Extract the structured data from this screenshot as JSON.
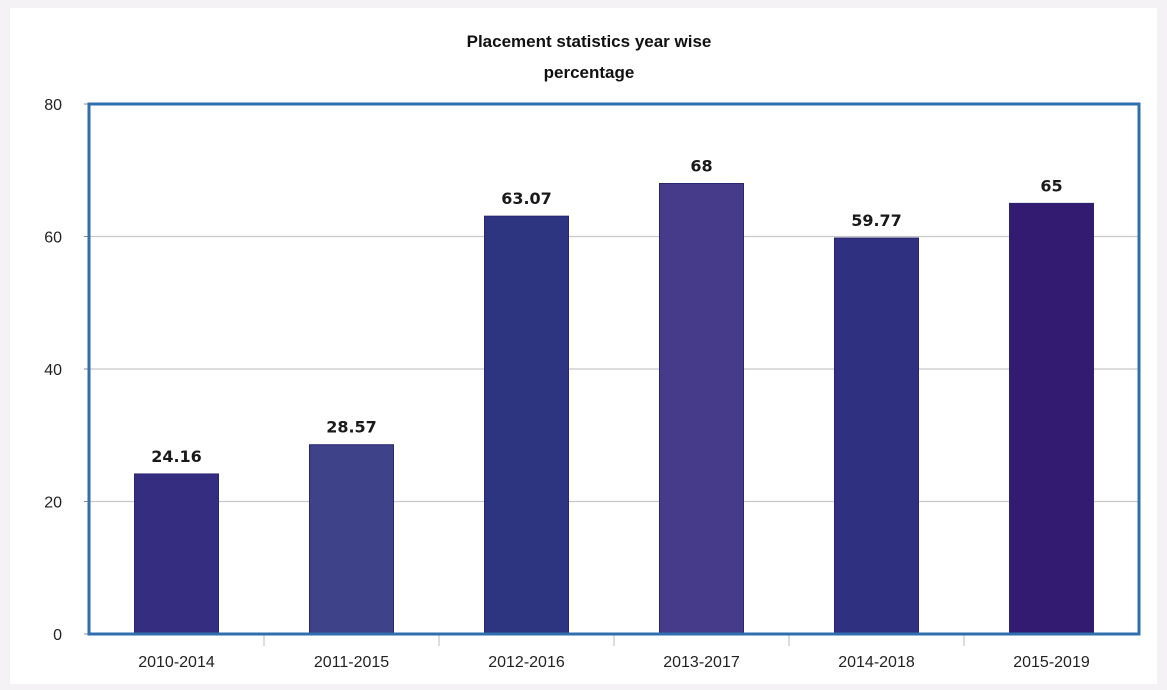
{
  "chart_data": {
    "type": "bar",
    "title": "Placement statistics year wise",
    "subtitle": "percentage",
    "xlabel": "",
    "ylabel": "",
    "categories": [
      "2010-2014",
      "2011-2015",
      "2012-2016",
      "2013-2017",
      "2014-2018",
      "2015-2019"
    ],
    "values": [
      24.16,
      28.57,
      63.07,
      68,
      59.77,
      65
    ],
    "data_labels": [
      "24.16",
      "28.57",
      "63.07",
      "68",
      "59.77",
      "65"
    ],
    "ylim": [
      0,
      80
    ],
    "yticks": [
      0,
      20,
      40,
      60,
      80
    ],
    "grid": true,
    "legend": "none",
    "colors": {
      "bars": [
        "#352d80",
        "#3d4289",
        "#2d3480",
        "#463b8a",
        "#2f307f",
        "#341b72"
      ],
      "frame": "#2f6fad",
      "grid": "#c8c8c8"
    }
  }
}
